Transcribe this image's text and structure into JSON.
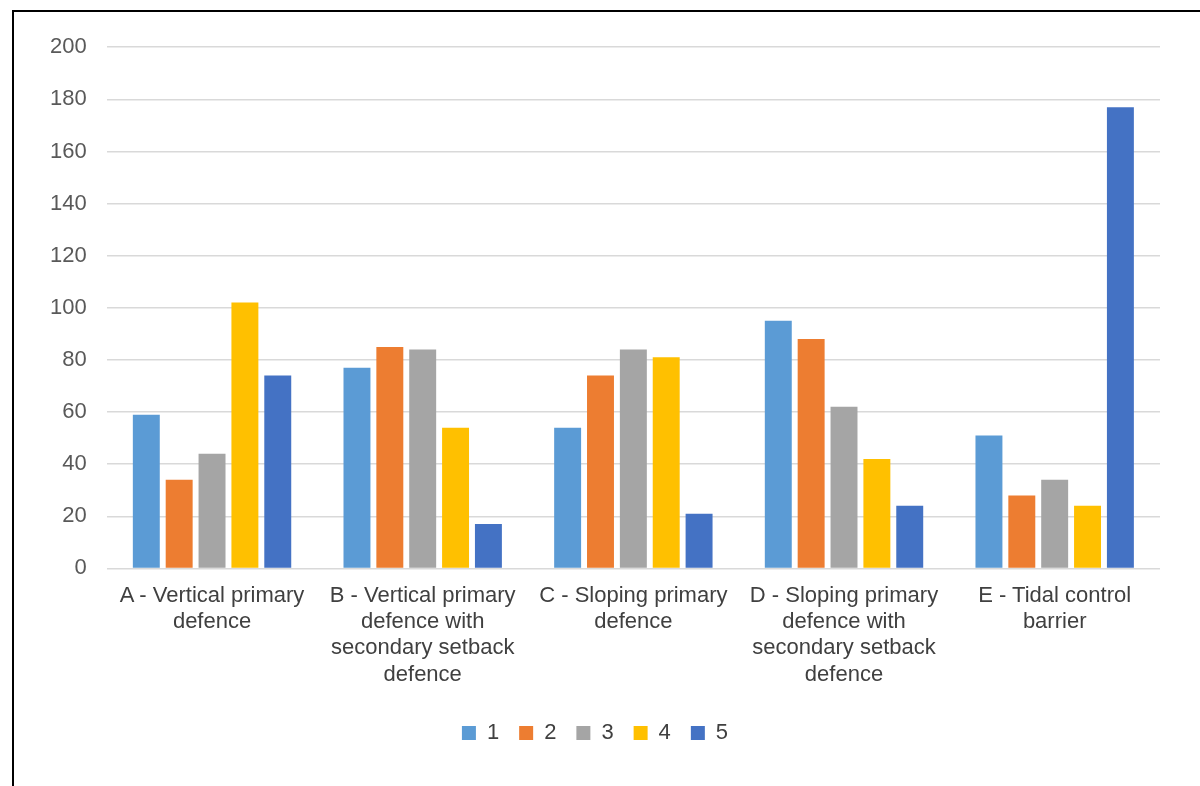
{
  "chart_data": {
    "type": "bar",
    "categories": [
      "A - Vertical primary defence",
      "B - Vertical primary defence with secondary setback defence",
      "C - Sloping primary defence",
      "D - Sloping primary defence with secondary setback defence",
      "E - Tidal control barrier"
    ],
    "series": [
      {
        "name": "1",
        "color": "#5b9bd5",
        "values": [
          59,
          77,
          54,
          95,
          51
        ]
      },
      {
        "name": "2",
        "color": "#ed7d31",
        "values": [
          34,
          85,
          74,
          88,
          28
        ]
      },
      {
        "name": "3",
        "color": "#a5a5a5",
        "values": [
          44,
          84,
          84,
          62,
          34
        ]
      },
      {
        "name": "4",
        "color": "#ffc000",
        "values": [
          102,
          54,
          81,
          42,
          24
        ]
      },
      {
        "name": "5",
        "color": "#4472c4",
        "values": [
          74,
          17,
          21,
          24,
          177
        ]
      }
    ],
    "ylim": [
      0,
      200
    ],
    "yticks": [
      0,
      20,
      40,
      60,
      80,
      100,
      120,
      140,
      160,
      180,
      200
    ],
    "grid": "y",
    "legend": "bottom"
  }
}
